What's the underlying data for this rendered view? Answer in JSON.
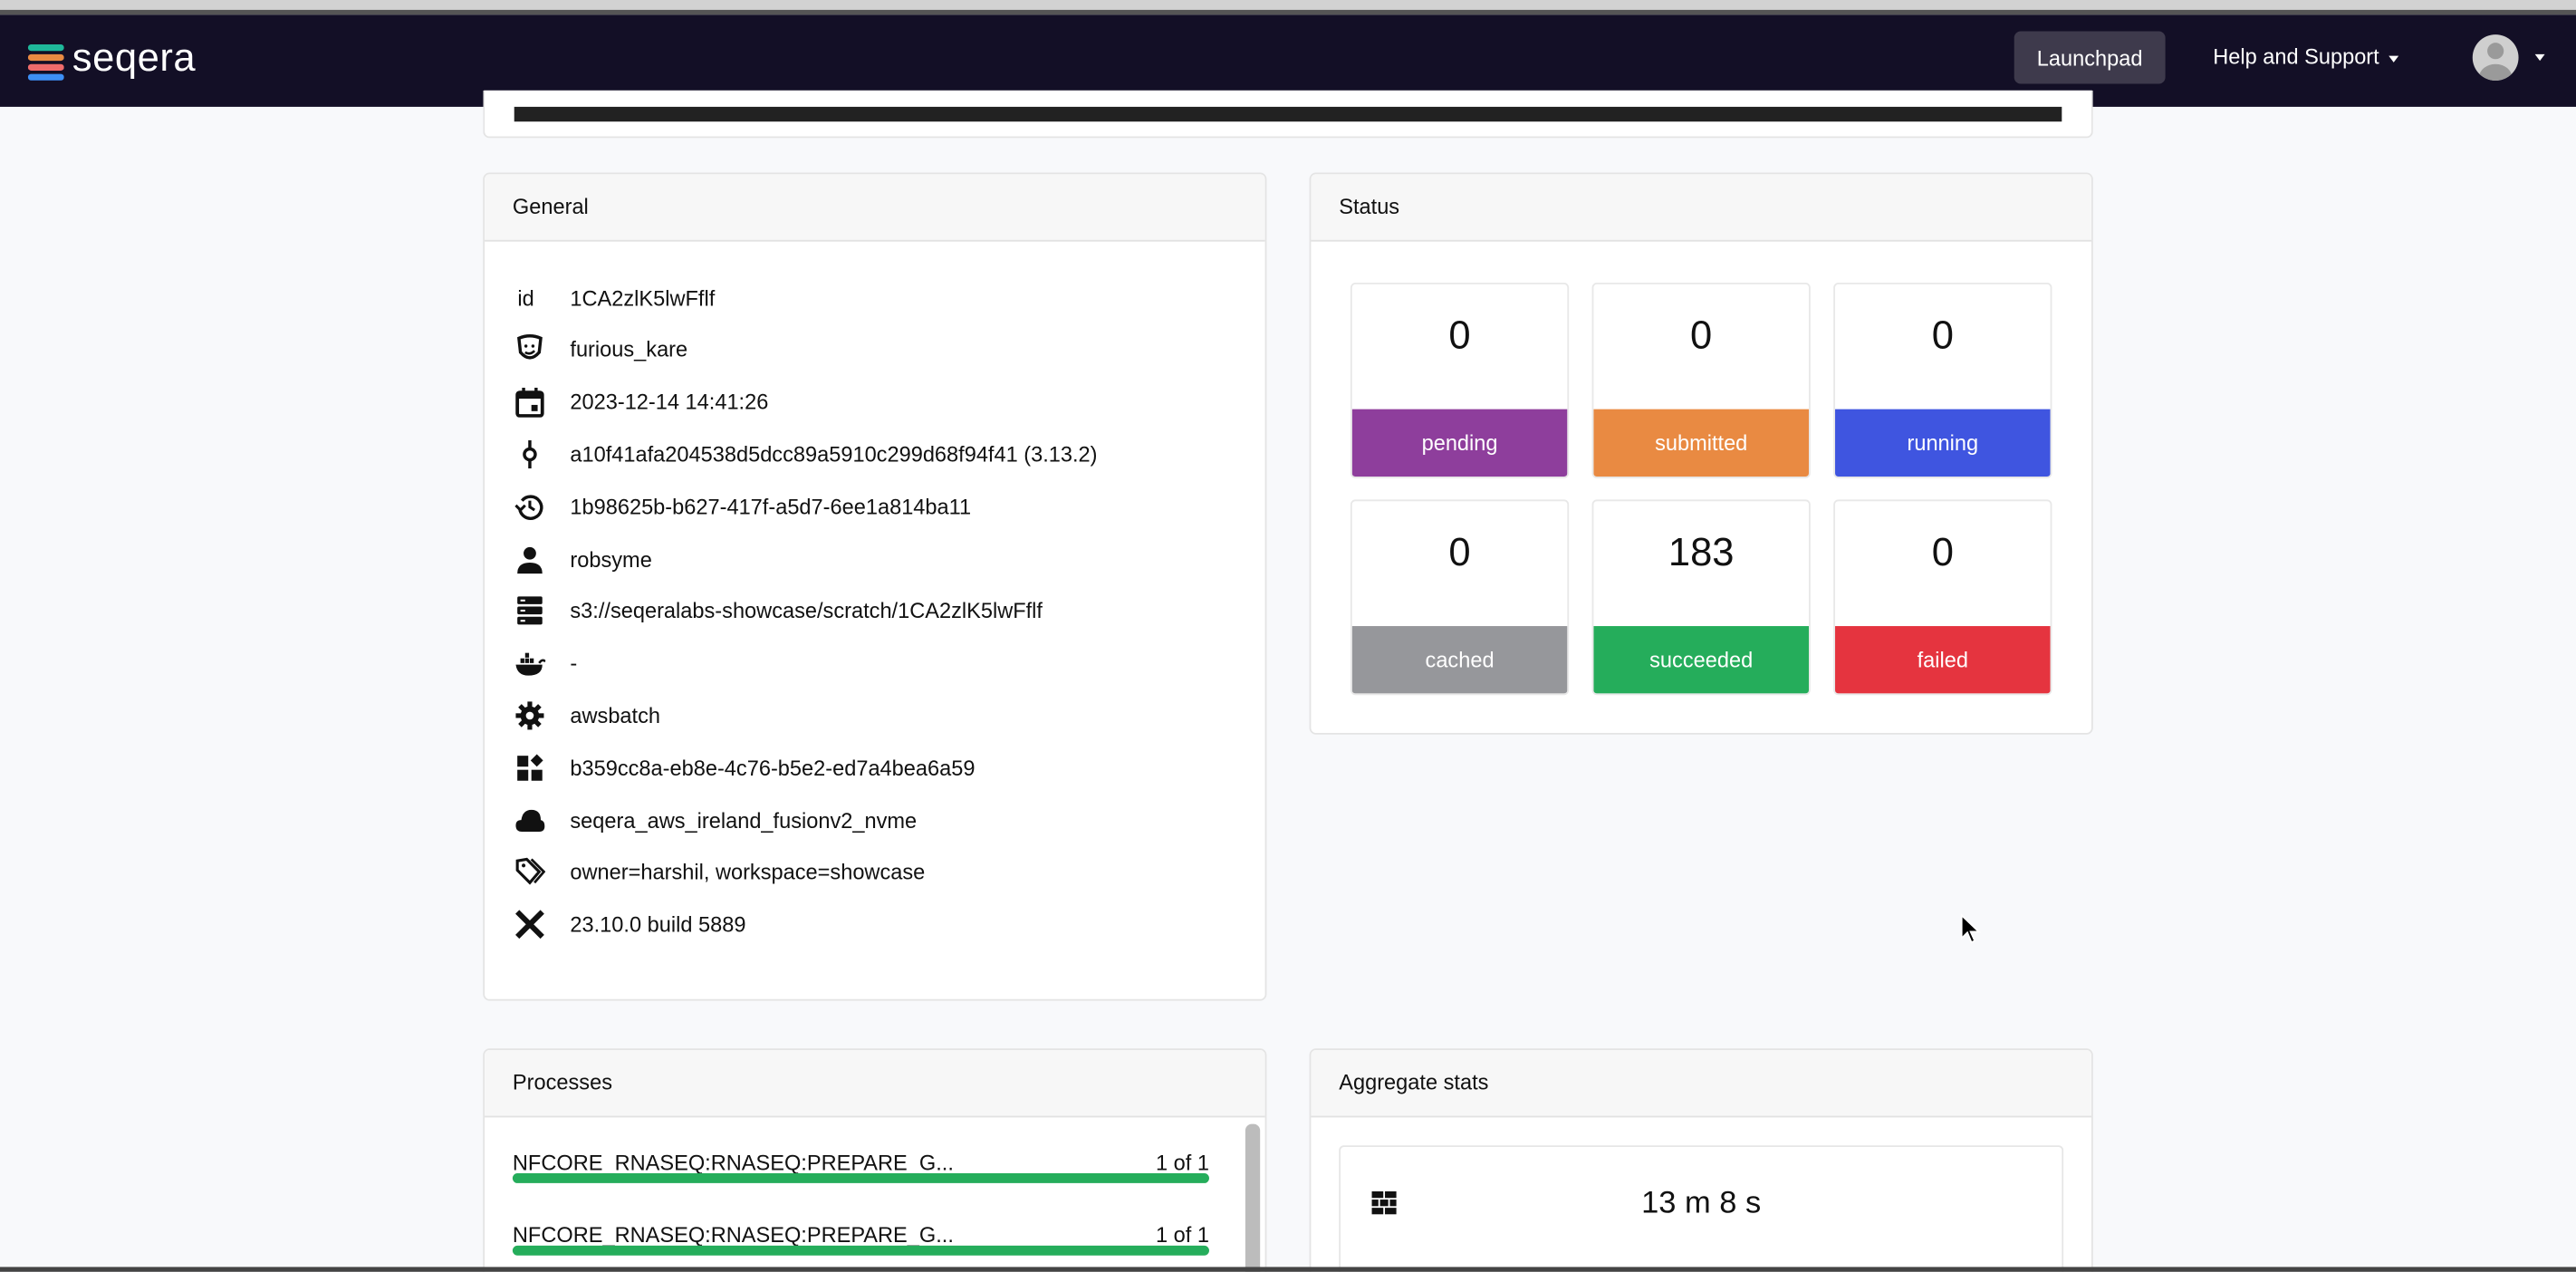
{
  "nav": {
    "brand": "seqera",
    "launchpad": "Launchpad",
    "help": "Help and Support"
  },
  "general": {
    "title": "General",
    "rows": [
      {
        "icon": "id-label",
        "label": "id",
        "value": "1CA2zlK5lwFflf"
      },
      {
        "icon": "theater-mask-icon",
        "value": "furious_kare"
      },
      {
        "icon": "calendar-icon",
        "value": "2023-12-14 14:41:26"
      },
      {
        "icon": "commit-icon",
        "value": "a10f41afa204538d5dcc89a5910c299d68f94f41 (3.13.2)"
      },
      {
        "icon": "history-icon",
        "value": "1b98625b-b627-417f-a5d7-6ee1a814ba11"
      },
      {
        "icon": "user-icon",
        "value": "robsyme"
      },
      {
        "icon": "storage-icon",
        "value": "s3://seqeralabs-showcase/scratch/1CA2zlK5lwFflf"
      },
      {
        "icon": "docker-icon",
        "value": "-"
      },
      {
        "icon": "gear-icon",
        "value": "awsbatch"
      },
      {
        "icon": "widgets-icon",
        "value": "b359cc8a-eb8e-4c76-b5e2-ed7a4bea6a59"
      },
      {
        "icon": "cloud-icon",
        "value": "seqera_aws_ireland_fusionv2_nvme"
      },
      {
        "icon": "tags-icon",
        "value": "owner=harshil, workspace=showcase"
      },
      {
        "icon": "nextflow-icon",
        "value": "23.10.0 build 5889"
      }
    ]
  },
  "status": {
    "title": "Status",
    "tiles": [
      {
        "count": "0",
        "label": "pending",
        "color": "#8e3e9c"
      },
      {
        "count": "0",
        "label": "submitted",
        "color": "#e98a42"
      },
      {
        "count": "0",
        "label": "running",
        "color": "#3f55e0"
      },
      {
        "count": "0",
        "label": "cached",
        "color": "#96979b"
      },
      {
        "count": "183",
        "label": "succeeded",
        "color": "#25ad5b"
      },
      {
        "count": "0",
        "label": "failed",
        "color": "#e5343f"
      }
    ]
  },
  "processes": {
    "title": "Processes",
    "items": [
      {
        "name": "NFCORE_RNASEQ:RNASEQ:PREPARE_G...",
        "count": "1 of 1",
        "progress": 1.0
      },
      {
        "name": "NFCORE_RNASEQ:RNASEQ:PREPARE_G...",
        "count": "1 of 1",
        "progress": 1.0
      }
    ]
  },
  "aggregate": {
    "title": "Aggregate stats",
    "wall_time": "13 m 8 s"
  },
  "colors": {
    "nav_bg": "#130f26",
    "success": "#25ad5b"
  }
}
